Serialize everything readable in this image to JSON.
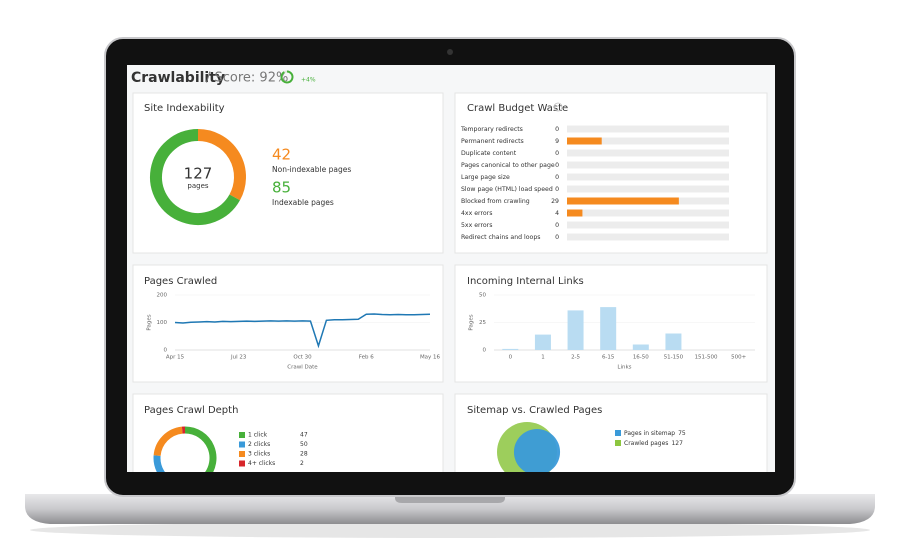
{
  "header": {
    "title": "Crawlability",
    "score_label": "/ Score: 92%",
    "score": 92,
    "change": "+4%",
    "color": "#47b03a"
  },
  "site_indexability": {
    "title": "Site Indexability",
    "total": 127,
    "total_unit": "pages",
    "non_indexable": {
      "value": 42,
      "label": "Non-indexable pages",
      "color": "#f58a1f"
    },
    "indexable": {
      "value": 85,
      "label": "Indexable pages",
      "color": "#47b03a"
    }
  },
  "crawl_budget_waste": {
    "title": "Crawl Budget Waste",
    "categories": [
      "Temporary redirects",
      "Permanent redirects",
      "Duplicate content",
      "Pages canonical to other page",
      "Large page size",
      "Slow page (HTML) load speed",
      "Blocked from crawling",
      "4xx errors",
      "5xx errors",
      "Redirect chains and loops"
    ],
    "values": [
      0,
      9,
      0,
      0,
      0,
      0,
      29,
      4,
      0,
      0
    ],
    "color": "#f58a1f",
    "xlim": [
      0,
      42
    ]
  },
  "pages_crawled": {
    "title": "Pages Crawled",
    "categories": [
      "Apr 15",
      null,
      null,
      null,
      null,
      null,
      null,
      null,
      "Jul 23",
      null,
      null,
      null,
      null,
      null,
      null,
      null,
      "Oct 30",
      null,
      null,
      null,
      null,
      null,
      null,
      null,
      "Feb 6",
      null,
      null,
      null,
      null,
      null,
      null,
      null,
      "May 16"
    ],
    "values": [
      100,
      98,
      101,
      102,
      103,
      102,
      104,
      103,
      104,
      105,
      104,
      105,
      106,
      105,
      106,
      105,
      106,
      105,
      15,
      108,
      110,
      110,
      111,
      112,
      130,
      131,
      129,
      128,
      129,
      128,
      128,
      129,
      130
    ],
    "ylim": [
      0,
      200
    ],
    "yticks": [
      0,
      100,
      200
    ],
    "y_label": "Pages",
    "x_label": "Crawl Date",
    "color": "#1f78b4"
  },
  "incoming_internal_links": {
    "title": "Incoming Internal Links",
    "categories": [
      "0",
      "1",
      "2-5",
      "6-15",
      "16-50",
      "51-150",
      "151-500",
      "500+"
    ],
    "values": [
      1,
      14,
      36,
      39,
      5,
      15,
      0,
      0
    ],
    "ylim": [
      0,
      50
    ],
    "yticks": [
      0,
      25,
      50
    ],
    "y_label": "Pages",
    "x_label": "Links",
    "color": "#b9dcf2"
  },
  "pages_crawl_depth": {
    "title": "Pages Crawl Depth",
    "categories": [
      "1 click",
      "2 clicks",
      "3 clicks",
      "4+ clicks"
    ],
    "values": [
      47,
      50,
      28,
      2
    ],
    "colors": [
      "#47b03a",
      "#3a9ad9",
      "#f58a1f",
      "#d7262b"
    ]
  },
  "sitemap_vs_crawled": {
    "title": "Sitemap vs. Crawled Pages",
    "series": [
      {
        "name": "Pages in sitemap",
        "value": 75,
        "color": "#3a9ad9"
      },
      {
        "name": "Crawled pages",
        "value": 127,
        "color": "#8cc63f"
      }
    ]
  }
}
